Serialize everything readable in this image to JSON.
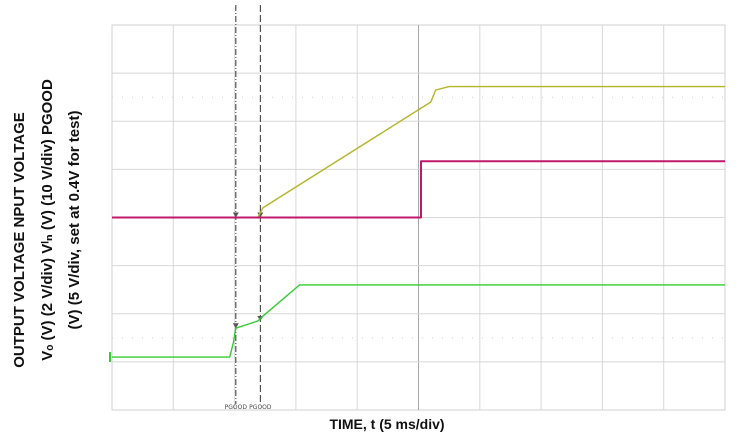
{
  "chart_data": {
    "type": "line",
    "title": "",
    "xlabel": "TIME, t (5 ms/div)",
    "ylabel_lines": [
      "OUTPUT VOLTAGE    NPUT VOLTAGE",
      "Vₒ (V) (2 V/div)    Vᴵₙ (V) (10 V/div) PGOOD",
      "(V) (5 V/div, set at 0.4V for test)"
    ],
    "x_divisions": 10,
    "y_divisions": 8,
    "grid": true,
    "xlim_ms": [
      0,
      50
    ],
    "series": [
      {
        "color": "#b5b52a",
        "x": [
          0,
          9.9,
          11.9,
          12.3,
          26,
          26.4,
          27.5,
          50
        ],
        "y": [
          4.0,
          4.0,
          4.0,
          3.8,
          1.6,
          1.35,
          1.28,
          1.28
        ]
      },
      {
        "color": "#c0186b",
        "x": [
          0,
          25.2,
          25.2,
          50
        ],
        "y": [
          4.0,
          4.0,
          2.83,
          2.83
        ]
      },
      {
        "color": "#33cc33",
        "x": [
          0,
          9.6,
          9.9,
          10.1,
          11.9,
          12.3,
          15.3,
          50
        ],
        "y": [
          6.9,
          6.9,
          6.6,
          6.3,
          6.15,
          6.05,
          5.4,
          5.4
        ]
      }
    ],
    "markers": [
      {
        "name": "marker-1",
        "x": 10.1,
        "label": "PGOOD",
        "style": "dash-dot",
        "tick_trace_y": [
          4.0,
          6.3
        ]
      },
      {
        "name": "marker-2",
        "x": 12.1,
        "label": "PGOOD",
        "style": "dashed",
        "tick_trace_y": [
          4.0,
          6.15
        ]
      }
    ],
    "ground_marker_y": 6.9
  }
}
